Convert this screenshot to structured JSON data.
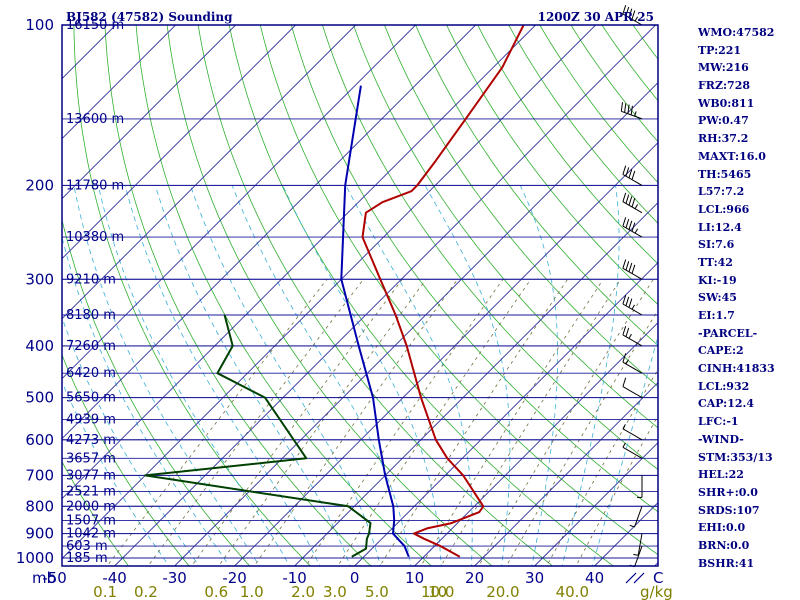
{
  "header": {
    "title": "BJ582 (47582) Sounding",
    "time": "1200Z 30 APR 25"
  },
  "stats": [
    "WMO:47582",
    "TP:221",
    "MW:216",
    "FRZ:728",
    "WB0:811",
    "PW:0.47",
    "RH:37.2",
    "MAXT:16.0",
    "TH:5465",
    "L57:7.2",
    "LCL:966",
    "LI:12.4",
    "SI:7.6",
    "TT:42",
    "KI:-19",
    "SW:45",
    "EI:1.7",
    "-PARCEL-",
    "CAPE:2",
    "CINH:41833",
    "LCL:932",
    "CAP:12.4",
    "LFC:-1",
    "-WIND-",
    "STM:353/13",
    "HEL:22",
    "SHR+:0.0",
    "SRDS:107",
    "EHI:0.0",
    "BRN:0.0",
    "BSHR:41"
  ],
  "colors": {
    "frame": "#000080",
    "isobar": "#1a1a9a",
    "isotherm": "#3030a0",
    "dry_adiabat": "#30b030",
    "moist_adiabat": "#3ab0d8",
    "mixing_ratio": "#707040",
    "temperature": "#b00000",
    "dewpoint": "#004000",
    "wetbulb": "#0000b0",
    "mixing_label": "#808000"
  },
  "chart_data": {
    "type": "line",
    "title": "BJ582 (47582) Sounding",
    "y_scale": "log",
    "ylim": [
      1000,
      100
    ],
    "xlim": [
      -50,
      50
    ],
    "xlabel_unit": "C",
    "ylabel_unit": "mb",
    "pressure_ticks": [
      100,
      200,
      300,
      400,
      500,
      600,
      700,
      800,
      900,
      1000
    ],
    "temperature_ticks": [
      "-50",
      "-40",
      "-30",
      "-20",
      "-10",
      "0",
      "10",
      "20",
      "30",
      "40"
    ],
    "pressure_tick_labels": [
      "100",
      "200",
      "300",
      "400",
      "500",
      "600",
      "700",
      "800",
      "900",
      "1000"
    ],
    "mb_label": "mb",
    "degc_label": "C",
    "mixing_ratio_unit": "g/kg",
    "mixing_ratio_ticks": [
      {
        "w": 0.1,
        "label": "0.1"
      },
      {
        "w": 0.2,
        "label": "0.2"
      },
      {
        "w": 0.6,
        "label": "0.6"
      },
      {
        "w": 1.0,
        "label": "1.0"
      },
      {
        "w": 2.0,
        "label": "2.0"
      },
      {
        "w": 3.0,
        "label": "3.0"
      },
      {
        "w": 5.0,
        "label": "5.0"
      },
      {
        "w": 10.0,
        "label": "10"
      },
      {
        "w": 10.0,
        "label": "10.0"
      },
      {
        "w": 20.0,
        "label": "20.0"
      },
      {
        "w": 40.0,
        "label": "40.0"
      }
    ],
    "heights": [
      {
        "p": 100,
        "label": "16150 m"
      },
      {
        "p": 150,
        "label": "13600 m"
      },
      {
        "p": 200,
        "label": "11780 m"
      },
      {
        "p": 250,
        "label": "10380 m"
      },
      {
        "p": 300,
        "label": "9210 m"
      },
      {
        "p": 350,
        "label": "8180 m"
      },
      {
        "p": 400,
        "label": "7260 m"
      },
      {
        "p": 450,
        "label": "6420 m"
      },
      {
        "p": 500,
        "label": "5650 m"
      },
      {
        "p": 550,
        "label": "4939 m"
      },
      {
        "p": 600,
        "label": "4273 m"
      },
      {
        "p": 650,
        "label": "3657 m"
      },
      {
        "p": 700,
        "label": "3077 m"
      },
      {
        "p": 750,
        "label": "2521 m"
      },
      {
        "p": 800,
        "label": "2000 m"
      },
      {
        "p": 850,
        "label": "1507 m"
      },
      {
        "p": 900,
        "label": "1042 m"
      },
      {
        "p": 950,
        "label": "603 m"
      },
      {
        "p": 1000,
        "label": "185 m"
      }
    ],
    "series": [
      {
        "kind": "temperature",
        "points": [
          {
            "p": 995,
            "t": 16.0
          },
          {
            "p": 950,
            "t": 11.0
          },
          {
            "p": 920,
            "t": 7.0
          },
          {
            "p": 900,
            "t": 4.5
          },
          {
            "p": 880,
            "t": 5.8
          },
          {
            "p": 860,
            "t": 9.0
          },
          {
            "p": 820,
            "t": 11.8
          },
          {
            "p": 800,
            "t": 11.5
          },
          {
            "p": 700,
            "t": 3.0
          },
          {
            "p": 650,
            "t": -2.5
          },
          {
            "p": 600,
            "t": -7.5
          },
          {
            "p": 500,
            "t": -17.0
          },
          {
            "p": 400,
            "t": -28.0
          },
          {
            "p": 350,
            "t": -35.0
          },
          {
            "p": 300,
            "t": -43.5
          },
          {
            "p": 250,
            "t": -53.5
          },
          {
            "p": 225,
            "t": -57.0
          },
          {
            "p": 215,
            "t": -56.0
          },
          {
            "p": 205,
            "t": -53.0
          },
          {
            "p": 200,
            "t": -53.0
          },
          {
            "p": 180,
            "t": -54.0
          },
          {
            "p": 150,
            "t": -56.0
          },
          {
            "p": 120,
            "t": -58.5
          },
          {
            "p": 100,
            "t": -62.0
          }
        ]
      },
      {
        "kind": "dewpoint",
        "points": [
          {
            "p": 995,
            "t": -2.0
          },
          {
            "p": 960,
            "t": -1.0
          },
          {
            "p": 920,
            "t": -2.5
          },
          {
            "p": 900,
            "t": -3.0
          },
          {
            "p": 860,
            "t": -4.5
          },
          {
            "p": 800,
            "t": -11.0
          },
          {
            "p": 700,
            "t": -50.0
          },
          {
            "p": 650,
            "t": -26.0
          },
          {
            "p": 500,
            "t": -43.0
          },
          {
            "p": 450,
            "t": -55.0
          },
          {
            "p": 400,
            "t": -57.0
          },
          {
            "p": 350,
            "t": -63.5
          }
        ]
      },
      {
        "kind": "wetbulb",
        "points": [
          {
            "p": 995,
            "t": 7.5
          },
          {
            "p": 950,
            "t": 5.0
          },
          {
            "p": 900,
            "t": 1.0
          },
          {
            "p": 850,
            "t": -1.0
          },
          {
            "p": 800,
            "t": -3.5
          },
          {
            "p": 700,
            "t": -10.0
          },
          {
            "p": 600,
            "t": -17.0
          },
          {
            "p": 500,
            "t": -25.0
          },
          {
            "p": 400,
            "t": -36.0
          },
          {
            "p": 300,
            "t": -50.0
          },
          {
            "p": 200,
            "t": -65.0
          },
          {
            "p": 130,
            "t": -79.0
          }
        ]
      }
    ],
    "wind_barbs": [
      {
        "p": 100,
        "dir": 300,
        "spd": 45
      },
      {
        "p": 150,
        "dir": 290,
        "spd": 45
      },
      {
        "p": 200,
        "dir": 300,
        "spd": 40
      },
      {
        "p": 225,
        "dir": 300,
        "spd": 45
      },
      {
        "p": 250,
        "dir": 300,
        "spd": 45
      },
      {
        "p": 300,
        "dir": 300,
        "spd": 40
      },
      {
        "p": 350,
        "dir": 300,
        "spd": 35
      },
      {
        "p": 400,
        "dir": 300,
        "spd": 25
      },
      {
        "p": 450,
        "dir": 300,
        "spd": 15
      },
      {
        "p": 500,
        "dir": 300,
        "spd": 10
      },
      {
        "p": 600,
        "dir": 300,
        "spd": 5
      },
      {
        "p": 650,
        "dir": 300,
        "spd": 5
      },
      {
        "p": 700,
        "dir": 180,
        "spd": 5
      },
      {
        "p": 800,
        "dir": 200,
        "spd": 5
      },
      {
        "p": 900,
        "dir": 190,
        "spd": 5
      },
      {
        "p": 950,
        "dir": 200,
        "spd": 5
      }
    ],
    "grid": true
  }
}
